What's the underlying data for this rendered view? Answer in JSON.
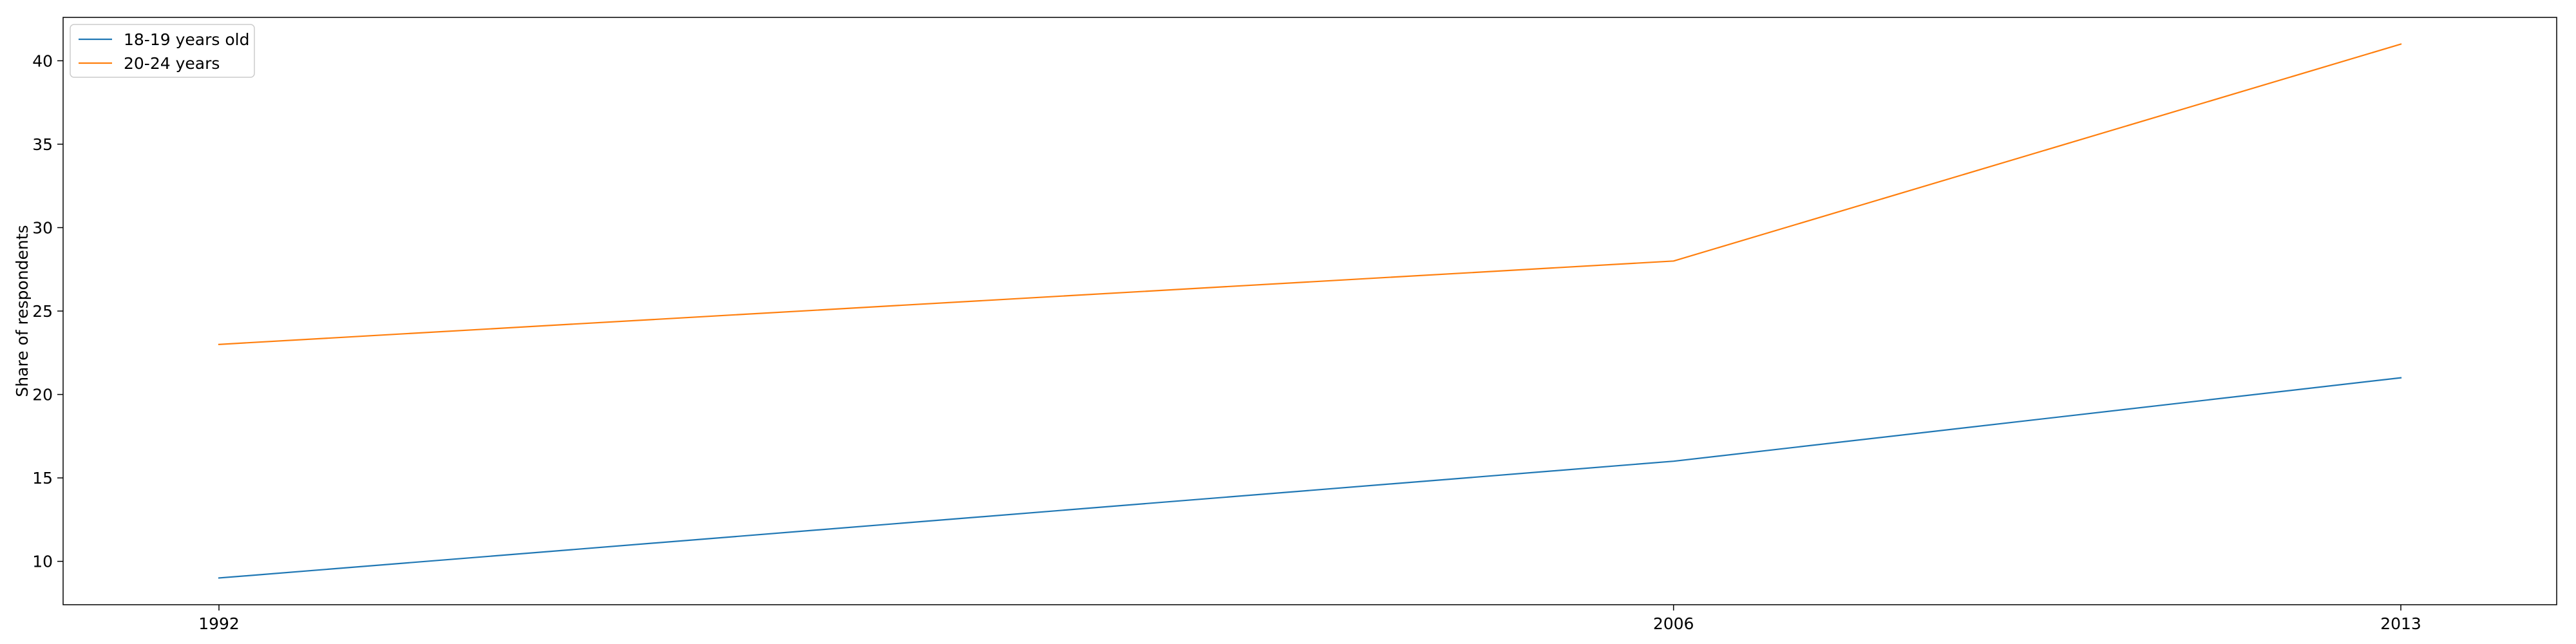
{
  "chart_data": {
    "type": "line",
    "x": [
      1992,
      2006,
      2013
    ],
    "x_tick_labels": [
      "1992",
      "2006",
      "2013"
    ],
    "series": [
      {
        "name": "18-19 years old",
        "values": [
          9,
          16,
          21
        ],
        "color": "#1f77b4"
      },
      {
        "name": "20-24 years",
        "values": [
          23,
          28,
          41
        ],
        "color": "#ff7f0e"
      }
    ],
    "title": "",
    "xlabel": "",
    "ylabel": "Share of respondents",
    "ylim": [
      7.4,
      42.6
    ],
    "y_ticks": [
      10,
      15,
      20,
      25,
      30,
      35,
      40
    ],
    "xlim": [
      1990.5,
      2014.5
    ],
    "grid": false,
    "legend_position": "top-left"
  }
}
